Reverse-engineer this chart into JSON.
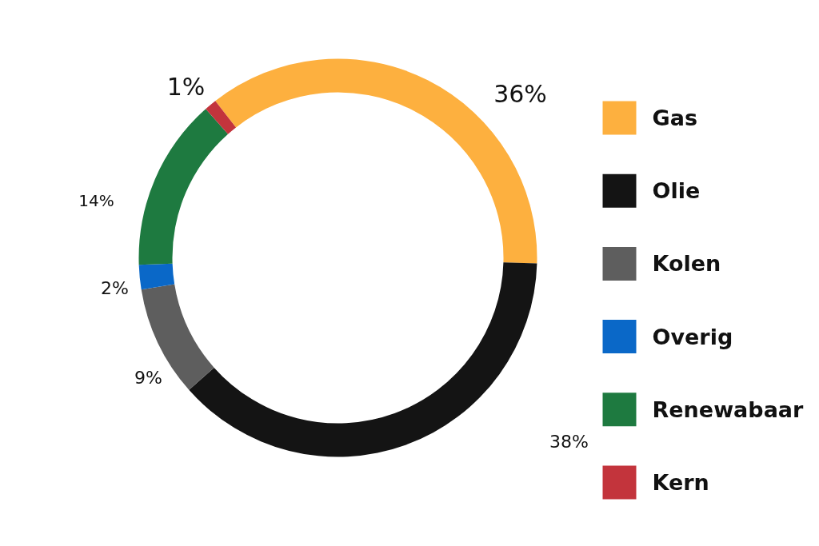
{
  "chart_data": {
    "type": "donut",
    "categories": [
      "Gas",
      "Olie",
      "Kolen",
      "Overig",
      "Renewabaar",
      "Kern"
    ],
    "values": [
      36,
      38,
      9,
      2,
      14,
      1
    ],
    "colors": [
      "#fdb03f",
      "#141414",
      "#5e5e5e",
      "#0a68c8",
      "#1e7a40",
      "#c3343c"
    ],
    "value_labels": [
      "36%",
      "38%",
      "9%",
      "2%",
      "14%",
      "1%"
    ],
    "legend": "right"
  }
}
